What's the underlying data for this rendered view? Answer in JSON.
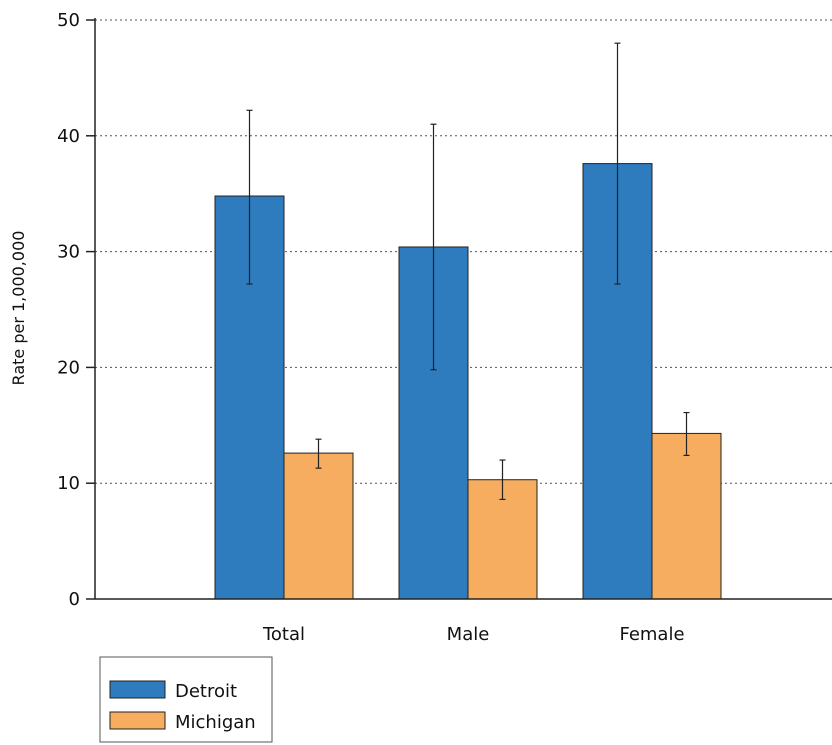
{
  "chart_data": {
    "type": "bar",
    "title": "",
    "xlabel": "",
    "ylabel": "Rate per 1,000,000",
    "ylim": [
      0,
      50
    ],
    "yticks": [
      0,
      10,
      20,
      30,
      40,
      50
    ],
    "grid": true,
    "legend_placement": "bottom-left",
    "categories": [
      "Total",
      "Male",
      "Female"
    ],
    "series": [
      {
        "name": "Detroit",
        "color": "#2e7bbd",
        "values": [
          34.8,
          30.4,
          37.6
        ],
        "error_low": [
          27.2,
          19.8,
          27.2
        ],
        "error_high": [
          42.2,
          41.0,
          48.0
        ]
      },
      {
        "name": "Michigan",
        "color": "#f7ad5f",
        "values": [
          12.6,
          10.3,
          14.3
        ],
        "error_low": [
          11.3,
          8.6,
          12.4
        ],
        "error_high": [
          13.8,
          12.0,
          16.1
        ]
      }
    ]
  }
}
